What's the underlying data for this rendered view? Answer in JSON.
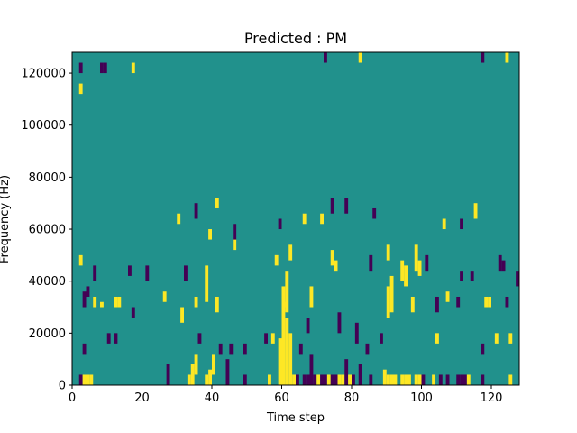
{
  "chart_data": {
    "type": "heatmap",
    "title": "Predicted : PM",
    "xlabel": "Time step",
    "ylabel": "Frequency (Hz)",
    "xlim": [
      0,
      128
    ],
    "ylim": [
      0,
      128000
    ],
    "x_ticks": [
      0,
      20,
      40,
      60,
      80,
      100,
      120
    ],
    "y_ticks": [
      0,
      20000,
      40000,
      60000,
      80000,
      100000,
      120000
    ],
    "grid": false,
    "n_time_steps": 128,
    "n_freq_bins": 64,
    "bin_hz": 2000,
    "colormap": {
      "background": "#21918c",
      "high": "#fde725",
      "low": "#440154"
    },
    "cells": [
      {
        "t": 2,
        "f0": 0,
        "f1": 4000,
        "level": "low"
      },
      {
        "t": 3,
        "f0": 0,
        "f1": 4000,
        "level": "high"
      },
      {
        "t": 4,
        "f0": 0,
        "f1": 4000,
        "level": "high"
      },
      {
        "t": 5,
        "f0": 0,
        "f1": 4000,
        "level": "high"
      },
      {
        "t": 27,
        "f0": 0,
        "f1": 8000,
        "level": "low"
      },
      {
        "t": 33,
        "f0": 0,
        "f1": 4000,
        "level": "high"
      },
      {
        "t": 34,
        "f0": 0,
        "f1": 8000,
        "level": "high"
      },
      {
        "t": 35,
        "f0": 4000,
        "f1": 12000,
        "level": "high"
      },
      {
        "t": 38,
        "f0": 0,
        "f1": 4000,
        "level": "high"
      },
      {
        "t": 39,
        "f0": 0,
        "f1": 6000,
        "level": "high"
      },
      {
        "t": 40,
        "f0": 4000,
        "f1": 12000,
        "level": "high"
      },
      {
        "t": 44,
        "f0": 0,
        "f1": 10000,
        "level": "low"
      },
      {
        "t": 49,
        "f0": 0,
        "f1": 4000,
        "level": "low"
      },
      {
        "t": 56,
        "f0": 0,
        "f1": 4000,
        "level": "high"
      },
      {
        "t": 59,
        "f0": 0,
        "f1": 18000,
        "level": "high"
      },
      {
        "t": 60,
        "f0": 0,
        "f1": 32000,
        "level": "high"
      },
      {
        "t": 61,
        "f0": 0,
        "f1": 26000,
        "level": "high"
      },
      {
        "t": 62,
        "f0": 0,
        "f1": 20000,
        "level": "high"
      },
      {
        "t": 63,
        "f0": 0,
        "f1": 4000,
        "level": "high"
      },
      {
        "t": 64,
        "f0": 0,
        "f1": 4000,
        "level": "low"
      },
      {
        "t": 66,
        "f0": 0,
        "f1": 4000,
        "level": "low"
      },
      {
        "t": 67,
        "f0": 0,
        "f1": 4000,
        "level": "low"
      },
      {
        "t": 68,
        "f0": 0,
        "f1": 12000,
        "level": "low"
      },
      {
        "t": 69,
        "f0": 0,
        "f1": 4000,
        "level": "low"
      },
      {
        "t": 70,
        "f0": 0,
        "f1": 4000,
        "level": "high"
      },
      {
        "t": 71,
        "f0": 0,
        "f1": 4000,
        "level": "low"
      },
      {
        "t": 72,
        "f0": 0,
        "f1": 4000,
        "level": "low"
      },
      {
        "t": 73,
        "f0": 0,
        "f1": 4000,
        "level": "high"
      },
      {
        "t": 74,
        "f0": 0,
        "f1": 4000,
        "level": "low"
      },
      {
        "t": 75,
        "f0": 0,
        "f1": 4000,
        "level": "low"
      },
      {
        "t": 76,
        "f0": 0,
        "f1": 4000,
        "level": "high"
      },
      {
        "t": 77,
        "f0": 0,
        "f1": 4000,
        "level": "high"
      },
      {
        "t": 78,
        "f0": 0,
        "f1": 10000,
        "level": "low"
      },
      {
        "t": 79,
        "f0": 0,
        "f1": 4000,
        "level": "high"
      },
      {
        "t": 80,
        "f0": 0,
        "f1": 4000,
        "level": "low"
      },
      {
        "t": 82,
        "f0": 0,
        "f1": 8000,
        "level": "low"
      },
      {
        "t": 85,
        "f0": 0,
        "f1": 4000,
        "level": "low"
      },
      {
        "t": 89,
        "f0": 0,
        "f1": 6000,
        "level": "high"
      },
      {
        "t": 90,
        "f0": 0,
        "f1": 4000,
        "level": "high"
      },
      {
        "t": 91,
        "f0": 0,
        "f1": 4000,
        "level": "high"
      },
      {
        "t": 92,
        "f0": 0,
        "f1": 4000,
        "level": "high"
      },
      {
        "t": 94,
        "f0": 0,
        "f1": 4000,
        "level": "high"
      },
      {
        "t": 95,
        "f0": 0,
        "f1": 4000,
        "level": "high"
      },
      {
        "t": 96,
        "f0": 0,
        "f1": 4000,
        "level": "high"
      },
      {
        "t": 98,
        "f0": 0,
        "f1": 4000,
        "level": "high"
      },
      {
        "t": 99,
        "f0": 0,
        "f1": 4000,
        "level": "high"
      },
      {
        "t": 100,
        "f0": 0,
        "f1": 4000,
        "level": "low"
      },
      {
        "t": 103,
        "f0": 0,
        "f1": 4000,
        "level": "high"
      },
      {
        "t": 105,
        "f0": 0,
        "f1": 4000,
        "level": "low"
      },
      {
        "t": 107,
        "f0": 0,
        "f1": 4000,
        "level": "low"
      },
      {
        "t": 110,
        "f0": 0,
        "f1": 4000,
        "level": "low"
      },
      {
        "t": 111,
        "f0": 0,
        "f1": 4000,
        "level": "low"
      },
      {
        "t": 112,
        "f0": 0,
        "f1": 4000,
        "level": "low"
      },
      {
        "t": 113,
        "f0": 0,
        "f1": 4000,
        "level": "high"
      },
      {
        "t": 117,
        "f0": 0,
        "f1": 4000,
        "level": "low"
      },
      {
        "t": 125,
        "f0": 0,
        "f1": 4000,
        "level": "high"
      },
      {
        "t": 3,
        "f0": 12000,
        "f1": 16000,
        "level": "low"
      },
      {
        "t": 10,
        "f0": 16000,
        "f1": 20000,
        "level": "low"
      },
      {
        "t": 12,
        "f0": 16000,
        "f1": 20000,
        "level": "low"
      },
      {
        "t": 36,
        "f0": 16000,
        "f1": 20000,
        "level": "low"
      },
      {
        "t": 42,
        "f0": 12000,
        "f1": 16000,
        "level": "low"
      },
      {
        "t": 45,
        "f0": 12000,
        "f1": 16000,
        "level": "low"
      },
      {
        "t": 49,
        "f0": 12000,
        "f1": 16000,
        "level": "low"
      },
      {
        "t": 55,
        "f0": 16000,
        "f1": 20000,
        "level": "low"
      },
      {
        "t": 57,
        "f0": 16000,
        "f1": 20000,
        "level": "high"
      },
      {
        "t": 65,
        "f0": 12000,
        "f1": 16000,
        "level": "low"
      },
      {
        "t": 67,
        "f0": 20000,
        "f1": 26000,
        "level": "low"
      },
      {
        "t": 76,
        "f0": 20000,
        "f1": 28000,
        "level": "low"
      },
      {
        "t": 81,
        "f0": 16000,
        "f1": 24000,
        "level": "low"
      },
      {
        "t": 84,
        "f0": 12000,
        "f1": 16000,
        "level": "low"
      },
      {
        "t": 88,
        "f0": 16000,
        "f1": 20000,
        "level": "low"
      },
      {
        "t": 104,
        "f0": 16000,
        "f1": 20000,
        "level": "high"
      },
      {
        "t": 117,
        "f0": 12000,
        "f1": 16000,
        "level": "low"
      },
      {
        "t": 121,
        "f0": 16000,
        "f1": 20000,
        "level": "high"
      },
      {
        "t": 125,
        "f0": 16000,
        "f1": 20000,
        "level": "high"
      },
      {
        "t": 3,
        "f0": 30000,
        "f1": 36000,
        "level": "low"
      },
      {
        "t": 4,
        "f0": 34000,
        "f1": 38000,
        "level": "low"
      },
      {
        "t": 6,
        "f0": 30000,
        "f1": 34000,
        "level": "high"
      },
      {
        "t": 8,
        "f0": 30000,
        "f1": 32000,
        "level": "high"
      },
      {
        "t": 12,
        "f0": 30000,
        "f1": 34000,
        "level": "high"
      },
      {
        "t": 13,
        "f0": 30000,
        "f1": 34000,
        "level": "high"
      },
      {
        "t": 17,
        "f0": 26000,
        "f1": 30000,
        "level": "low"
      },
      {
        "t": 26,
        "f0": 32000,
        "f1": 36000,
        "level": "high"
      },
      {
        "t": 31,
        "f0": 24000,
        "f1": 30000,
        "level": "high"
      },
      {
        "t": 35,
        "f0": 30000,
        "f1": 34000,
        "level": "high"
      },
      {
        "t": 38,
        "f0": 32000,
        "f1": 46000,
        "level": "high"
      },
      {
        "t": 41,
        "f0": 28000,
        "f1": 34000,
        "level": "high"
      },
      {
        "t": 60,
        "f0": 30000,
        "f1": 38000,
        "level": "high"
      },
      {
        "t": 61,
        "f0": 28000,
        "f1": 44000,
        "level": "high"
      },
      {
        "t": 68,
        "f0": 30000,
        "f1": 38000,
        "level": "high"
      },
      {
        "t": 90,
        "f0": 26000,
        "f1": 38000,
        "level": "high"
      },
      {
        "t": 91,
        "f0": 28000,
        "f1": 42000,
        "level": "high"
      },
      {
        "t": 97,
        "f0": 28000,
        "f1": 34000,
        "level": "high"
      },
      {
        "t": 104,
        "f0": 28000,
        "f1": 34000,
        "level": "low"
      },
      {
        "t": 107,
        "f0": 32000,
        "f1": 36000,
        "level": "high"
      },
      {
        "t": 110,
        "f0": 30000,
        "f1": 34000,
        "level": "low"
      },
      {
        "t": 118,
        "f0": 30000,
        "f1": 34000,
        "level": "high"
      },
      {
        "t": 119,
        "f0": 30000,
        "f1": 34000,
        "level": "high"
      },
      {
        "t": 124,
        "f0": 30000,
        "f1": 34000,
        "level": "low"
      },
      {
        "t": 2,
        "f0": 46000,
        "f1": 50000,
        "level": "high"
      },
      {
        "t": 6,
        "f0": 40000,
        "f1": 46000,
        "level": "low"
      },
      {
        "t": 16,
        "f0": 42000,
        "f1": 46000,
        "level": "low"
      },
      {
        "t": 21,
        "f0": 40000,
        "f1": 46000,
        "level": "low"
      },
      {
        "t": 32,
        "f0": 40000,
        "f1": 46000,
        "level": "low"
      },
      {
        "t": 46,
        "f0": 52000,
        "f1": 56000,
        "level": "high"
      },
      {
        "t": 58,
        "f0": 46000,
        "f1": 50000,
        "level": "high"
      },
      {
        "t": 62,
        "f0": 48000,
        "f1": 54000,
        "level": "high"
      },
      {
        "t": 74,
        "f0": 46000,
        "f1": 52000,
        "level": "high"
      },
      {
        "t": 75,
        "f0": 44000,
        "f1": 48000,
        "level": "high"
      },
      {
        "t": 85,
        "f0": 44000,
        "f1": 50000,
        "level": "low"
      },
      {
        "t": 90,
        "f0": 48000,
        "f1": 54000,
        "level": "high"
      },
      {
        "t": 94,
        "f0": 40000,
        "f1": 48000,
        "level": "high"
      },
      {
        "t": 95,
        "f0": 38000,
        "f1": 46000,
        "level": "high"
      },
      {
        "t": 98,
        "f0": 44000,
        "f1": 54000,
        "level": "high"
      },
      {
        "t": 99,
        "f0": 42000,
        "f1": 48000,
        "level": "high"
      },
      {
        "t": 101,
        "f0": 44000,
        "f1": 50000,
        "level": "low"
      },
      {
        "t": 111,
        "f0": 40000,
        "f1": 44000,
        "level": "low"
      },
      {
        "t": 114,
        "f0": 40000,
        "f1": 44000,
        "level": "low"
      },
      {
        "t": 122,
        "f0": 44000,
        "f1": 50000,
        "level": "low"
      },
      {
        "t": 123,
        "f0": 44000,
        "f1": 48000,
        "level": "low"
      },
      {
        "t": 127,
        "f0": 38000,
        "f1": 44000,
        "level": "low"
      },
      {
        "t": 30,
        "f0": 62000,
        "f1": 66000,
        "level": "high"
      },
      {
        "t": 35,
        "f0": 64000,
        "f1": 70000,
        "level": "low"
      },
      {
        "t": 39,
        "f0": 56000,
        "f1": 60000,
        "level": "high"
      },
      {
        "t": 41,
        "f0": 68000,
        "f1": 72000,
        "level": "high"
      },
      {
        "t": 46,
        "f0": 56000,
        "f1": 62000,
        "level": "low"
      },
      {
        "t": 59,
        "f0": 60000,
        "f1": 64000,
        "level": "low"
      },
      {
        "t": 66,
        "f0": 62000,
        "f1": 66000,
        "level": "high"
      },
      {
        "t": 71,
        "f0": 62000,
        "f1": 66000,
        "level": "high"
      },
      {
        "t": 74,
        "f0": 66000,
        "f1": 72000,
        "level": "low"
      },
      {
        "t": 78,
        "f0": 66000,
        "f1": 72000,
        "level": "low"
      },
      {
        "t": 86,
        "f0": 64000,
        "f1": 68000,
        "level": "low"
      },
      {
        "t": 106,
        "f0": 60000,
        "f1": 64000,
        "level": "high"
      },
      {
        "t": 111,
        "f0": 60000,
        "f1": 64000,
        "level": "low"
      },
      {
        "t": 115,
        "f0": 64000,
        "f1": 70000,
        "level": "high"
      },
      {
        "t": 2,
        "f0": 120000,
        "f1": 124000,
        "level": "low"
      },
      {
        "t": 8,
        "f0": 120000,
        "f1": 124000,
        "level": "low"
      },
      {
        "t": 9,
        "f0": 120000,
        "f1": 124000,
        "level": "low"
      },
      {
        "t": 17,
        "f0": 120000,
        "f1": 124000,
        "level": "high"
      },
      {
        "t": 2,
        "f0": 112000,
        "f1": 116000,
        "level": "high"
      },
      {
        "t": 72,
        "f0": 124000,
        "f1": 128000,
        "level": "low"
      },
      {
        "t": 82,
        "f0": 124000,
        "f1": 128000,
        "level": "high"
      },
      {
        "t": 117,
        "f0": 124000,
        "f1": 128000,
        "level": "low"
      },
      {
        "t": 124,
        "f0": 124000,
        "f1": 128000,
        "level": "high"
      }
    ]
  }
}
